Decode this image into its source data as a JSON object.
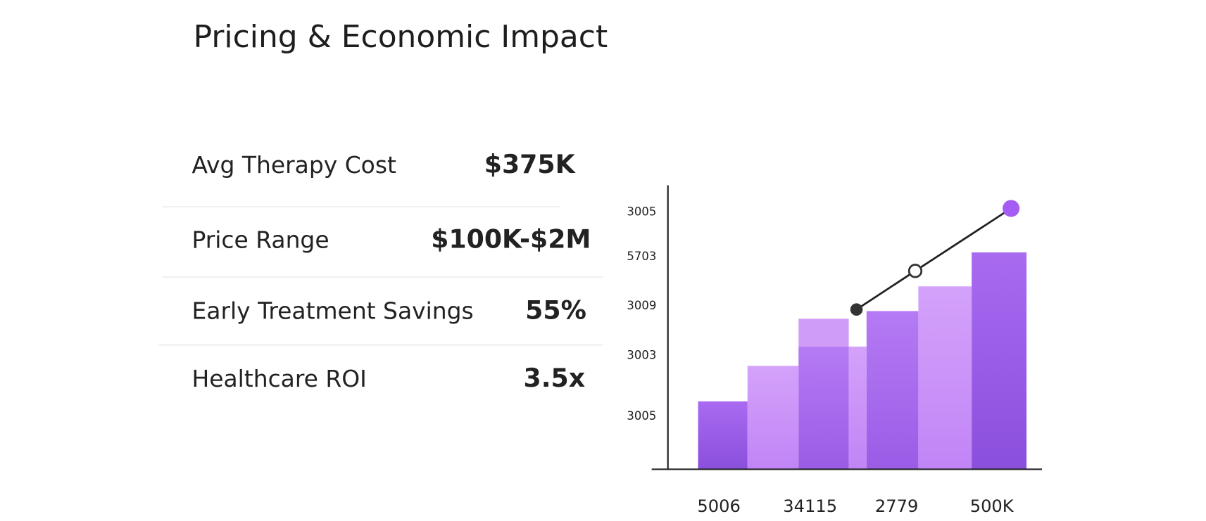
{
  "header": {
    "title": "Pricing & Economic Impact"
  },
  "metrics": [
    {
      "label": "Avg Therapy Cost",
      "value": "$375K"
    },
    {
      "label": "Price Range",
      "value": "$100K-$2M"
    },
    {
      "label": "Early Treatment Savings",
      "value": "55%"
    },
    {
      "label": "Healthcare ROI",
      "value": "3.5x"
    }
  ],
  "chart": {
    "y_labels": [
      "3005",
      "5703",
      "3009",
      "3003",
      "3005"
    ],
    "x_labels": [
      "5006",
      "34115",
      "2779",
      "500K"
    ]
  }
}
